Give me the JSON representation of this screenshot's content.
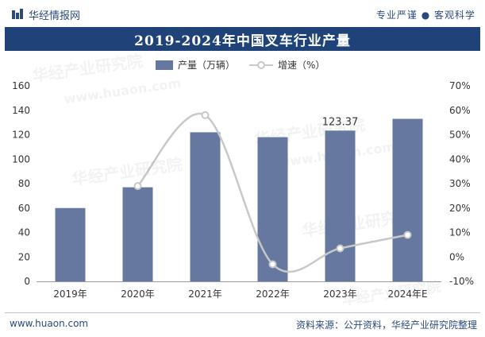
{
  "header": {
    "brand": "华经情报网",
    "slogan": "专业严谨 ● 客观科学",
    "title": "2019-2024年中国叉车行业产量"
  },
  "footer": {
    "left": "www.huaon.com",
    "right": "资料来源：公开资料，华经产业研究院整理"
  },
  "watermark": {
    "line1": "华经产业研究院",
    "line2": "www.huaon.com"
  },
  "colors": {
    "bar": "#6678a0",
    "line": "#c8c8c8",
    "marker_fill": "#ffffff",
    "axis_text": "#333333",
    "title_bg": "#1f4379"
  },
  "chart_data": {
    "type": "bar+line",
    "title": "2019-2024年中国叉车行业产量",
    "categories": [
      "2019年",
      "2020年",
      "2021年",
      "2022年",
      "2023年",
      "2024年E"
    ],
    "series": [
      {
        "name": "产量（万辆）",
        "type": "bar",
        "axis": "left",
        "values": [
          60,
          77,
          122,
          118,
          123.37,
          133
        ]
      },
      {
        "name": "增速（%）",
        "type": "line",
        "axis": "right",
        "values": [
          null,
          29,
          58,
          -3,
          3.5,
          9
        ]
      }
    ],
    "data_labels": [
      {
        "category": "2023年",
        "text": "123.37"
      }
    ],
    "y_left": {
      "min": 0,
      "max": 160,
      "step": 20,
      "ticks": [
        "0",
        "20",
        "40",
        "60",
        "80",
        "100",
        "120",
        "140",
        "160"
      ]
    },
    "y_right": {
      "min": -10,
      "max": 70,
      "step": 10,
      "ticks": [
        "-10%",
        "0%",
        "10%",
        "20%",
        "30%",
        "40%",
        "50%",
        "60%",
        "70%"
      ]
    },
    "legend": {
      "position": "top-center"
    }
  }
}
